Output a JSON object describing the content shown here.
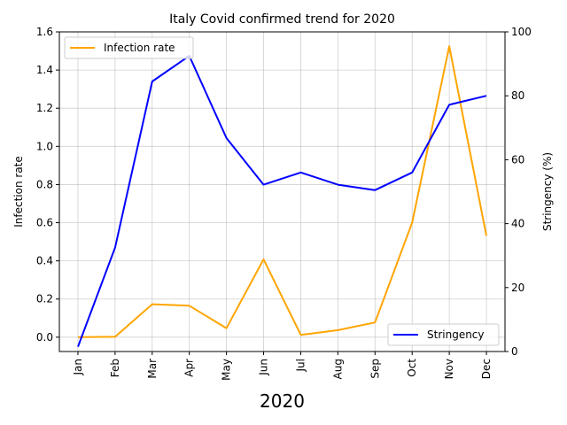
{
  "chart_data": {
    "type": "line",
    "title": "Italy Covid confirmed trend for 2020",
    "xlabel": "2020",
    "categories": [
      "Jan",
      "Feb",
      "Mar",
      "Apr",
      "May",
      "Jun",
      "Jul",
      "Aug",
      "Sep",
      "Oct",
      "Nov",
      "Dec"
    ],
    "y_left": {
      "label": "Infection rate",
      "lim": [
        -0.075,
        1.6
      ],
      "ticks": [
        "0.0",
        "0.2",
        "0.4",
        "0.6",
        "0.8",
        "1.0",
        "1.2",
        "1.4",
        "1.6"
      ]
    },
    "y_right": {
      "label": "Stringency (%)",
      "lim": [
        0,
        100
      ],
      "ticks": [
        "0",
        "20",
        "40",
        "60",
        "80",
        "100"
      ]
    },
    "grid": true,
    "series": [
      {
        "name": "Infection rate",
        "axis": "left",
        "color": "#ffa500",
        "values": [
          0.0,
          0.002,
          0.173,
          0.165,
          0.047,
          0.408,
          0.012,
          0.037,
          0.077,
          0.6,
          1.525,
          0.532
        ]
      },
      {
        "name": "Stringency",
        "axis": "right",
        "color": "#0000ff",
        "values": [
          1.5,
          32.5,
          84.5,
          92.5,
          66.8,
          52.2,
          56.0,
          52.2,
          50.5,
          56.0,
          77.2,
          80.0
        ]
      }
    ],
    "legends": [
      {
        "position": "upper-left",
        "entries": [
          "Infection rate"
        ]
      },
      {
        "position": "lower-right",
        "entries": [
          "Stringency"
        ]
      }
    ]
  }
}
